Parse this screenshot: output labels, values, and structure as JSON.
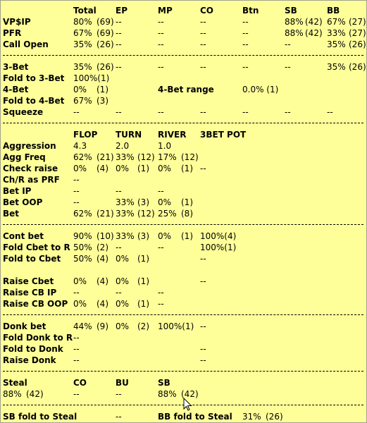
{
  "header": [
    "Total",
    "EP",
    "MP",
    "CO",
    "Btn",
    "SB",
    "BB"
  ],
  "rows1": [
    {
      "label": "VP$IP",
      "cells": [
        "80%",
        "(69)",
        "--",
        "--",
        "--",
        "--",
        "88%",
        "(42)",
        "67%",
        "(27)"
      ]
    },
    {
      "label": "PFR",
      "cells": [
        "67%",
        "(69)",
        "--",
        "--",
        "--",
        "--",
        "88%",
        "(42)",
        "33%",
        "(27)"
      ]
    },
    {
      "label": "Call Open",
      "cells": [
        "35%",
        "(26)",
        "--",
        "--",
        "--",
        "--",
        "--",
        "35%",
        "(26)"
      ]
    }
  ],
  "threebet": {
    "label": "3-Bet",
    "cells": [
      "35%",
      "(26)",
      "--",
      "--",
      "--",
      "--",
      "--",
      "35%",
      "(26)"
    ]
  },
  "fold3bet": {
    "label": "Fold to 3-Bet",
    "value": "100%(1)"
  },
  "fourbet": {
    "label": "4-Bet",
    "value": "0%",
    "count": "(1)",
    "range_label": "4-Bet range",
    "range_value": "0.0% (1)"
  },
  "fold4bet": {
    "label": "Fold to 4-Bet",
    "value": "67%",
    "count": "(3)"
  },
  "squeeze": {
    "label": "Squeeze",
    "cells": [
      "--",
      "--",
      "--",
      "--",
      "--",
      "--",
      "--"
    ]
  },
  "street_header": [
    "FLOP",
    "TURN",
    "RIVER",
    "3BET POT"
  ],
  "aggression": {
    "label": "Aggression",
    "values": [
      "4.3",
      "2.0",
      "1.0"
    ]
  },
  "agg_freq": {
    "label": "Agg Freq",
    "values": [
      "62%",
      "(21)",
      "33%",
      "(12)",
      "17%",
      "(12)"
    ]
  },
  "check_raise": {
    "label": "Check raise",
    "values": [
      "0%",
      "(4)",
      "0%",
      "(1)",
      "0%",
      "(1)",
      "--"
    ]
  },
  "chr_prf": {
    "label": "Ch/R as PRF",
    "values": [
      "--"
    ]
  },
  "bet_ip": {
    "label": "Bet IP",
    "values": [
      "--",
      "--",
      "--"
    ]
  },
  "bet_oop": {
    "label": "Bet OOP",
    "values": [
      "--",
      "33%",
      "(3)",
      "0%",
      "(1)"
    ]
  },
  "bet": {
    "label": "Bet",
    "values": [
      "62%",
      "(21)",
      "33%",
      "(12)",
      "25%",
      "(8)"
    ]
  },
  "cont_bet": {
    "label": "Cont bet",
    "values": [
      "90%",
      "(10)",
      "33%",
      "(3)",
      "0%",
      "(1)",
      "100%(4)"
    ]
  },
  "fold_cbet_r": {
    "label": "Fold Cbet to R",
    "values": [
      "50%",
      "(2)",
      "--",
      "--",
      "100%(1)"
    ]
  },
  "fold_cbet": {
    "label": "Fold to Cbet",
    "values": [
      "50%",
      "(4)",
      "0%",
      "(1)",
      "--"
    ]
  },
  "raise_cbet": {
    "label": "Raise Cbet",
    "values": [
      "0%",
      "(4)",
      "0%",
      "(1)",
      "--"
    ]
  },
  "raise_cb_ip": {
    "label": "Raise CB IP",
    "values": [
      "--",
      "--",
      "--"
    ]
  },
  "raise_cb_oop": {
    "label": "Raise CB OOP",
    "values": [
      "0%",
      "(4)",
      "0%",
      "(1)",
      "--"
    ]
  },
  "donk_bet": {
    "label": "Donk bet",
    "values": [
      "44%",
      "(9)",
      "0%",
      "(2)",
      "100%(1)",
      "--"
    ]
  },
  "fold_donk_r": {
    "label": "Fold Donk to R",
    "values": [
      "--"
    ]
  },
  "fold_donk": {
    "label": "Fold to Donk",
    "values": [
      "--",
      "--"
    ]
  },
  "raise_donk": {
    "label": "Raise Donk",
    "values": [
      "--",
      "--"
    ]
  },
  "steal": {
    "label": "Steal",
    "cols": [
      "CO",
      "BU",
      "SB"
    ],
    "total": "88%",
    "total_count": "(42)",
    "co": "--",
    "bu": "--",
    "sb": "88%",
    "sb_count": "(42)"
  },
  "sb_fold_steal": {
    "label": "SB fold to Steal",
    "value": "--"
  },
  "bb_fold_steal": {
    "label": "BB fold to Steal",
    "value": "31%",
    "count": "(26)"
  }
}
